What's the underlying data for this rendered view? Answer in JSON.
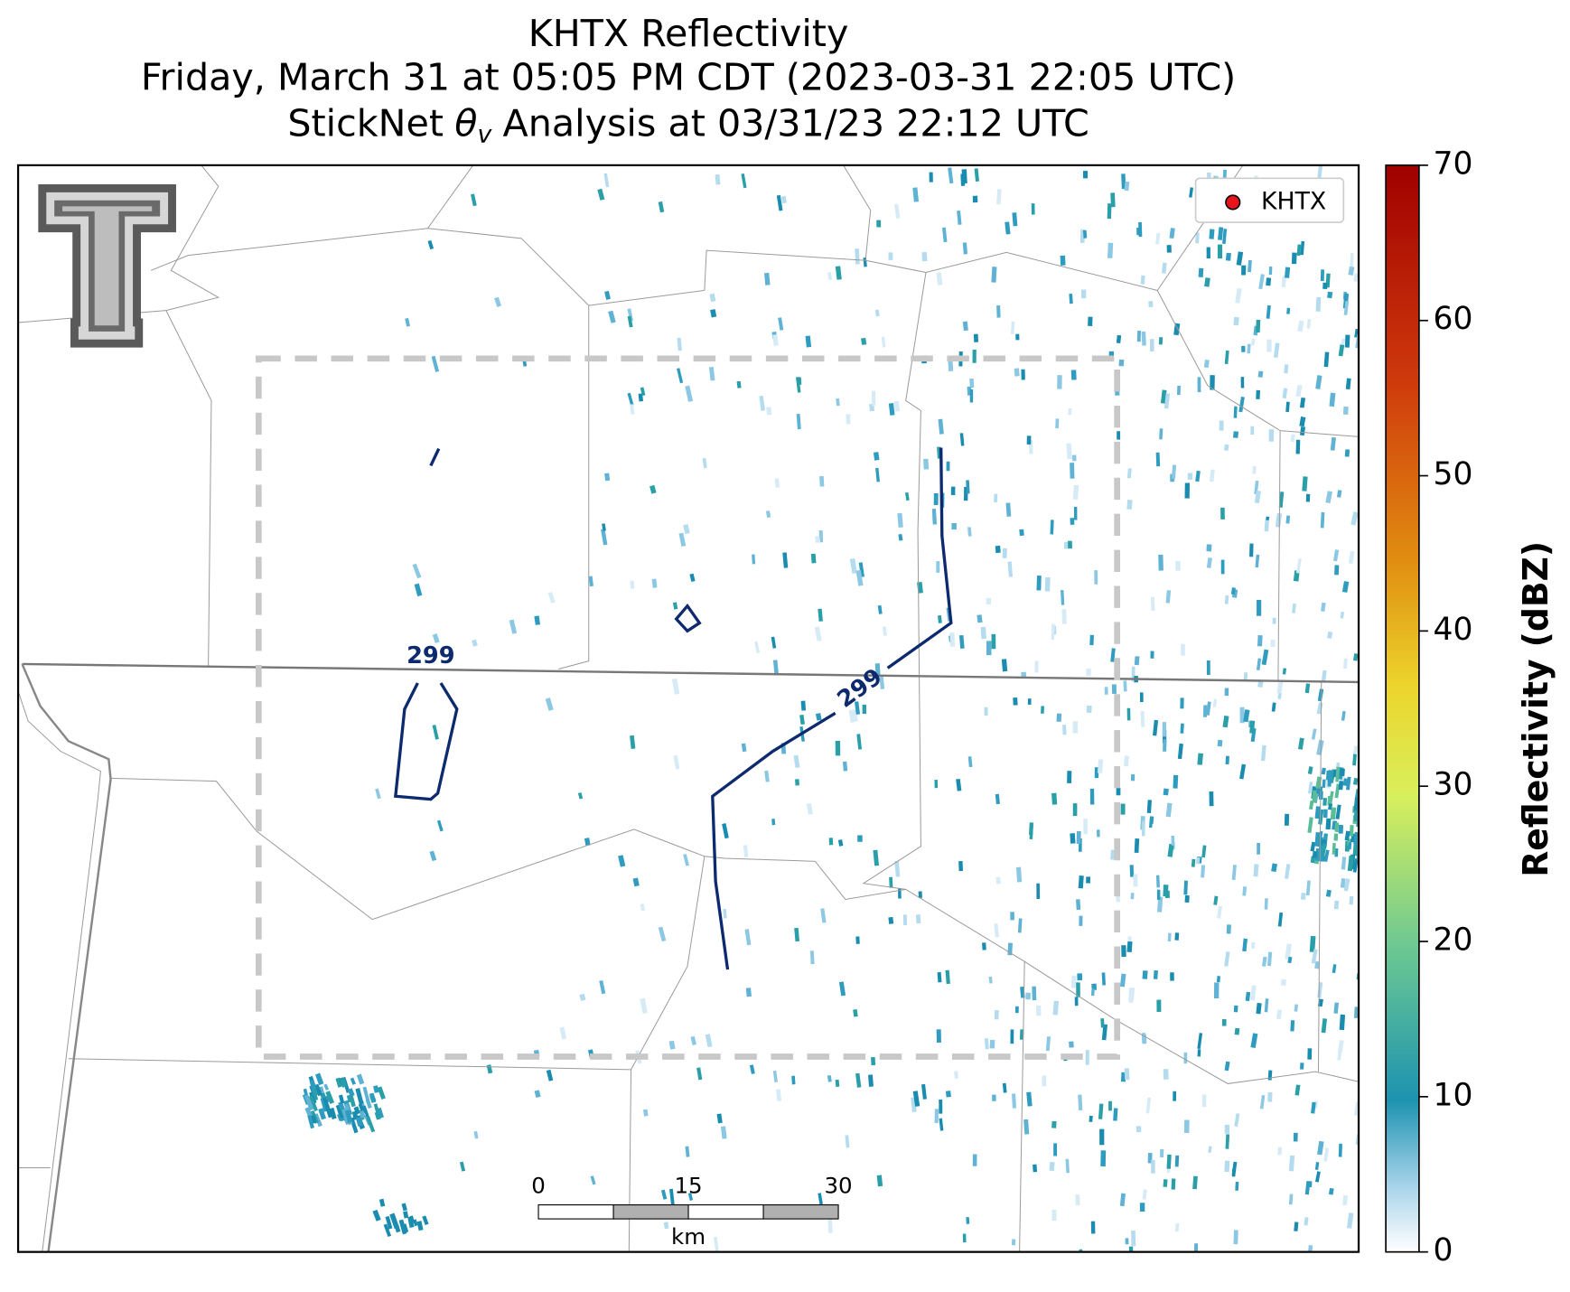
{
  "title": {
    "line1": "KHTX Reflectivity",
    "line2": "Friday, March 31 at 05:05 PM CDT (2023-03-31 22:05 UTC)",
    "line3": {
      "prefix": "StickNet",
      "symbol": "θ",
      "subscript": "v",
      "suffix": "Analysis at 03/31/23 22:12 UTC"
    }
  },
  "legend": {
    "label": "KHTX",
    "color": "#e8141c"
  },
  "contours": [
    {
      "value": 299
    },
    {
      "value": 299
    }
  ],
  "scale_bar": {
    "ticks": [
      0,
      15,
      30
    ],
    "unit": "km"
  },
  "colorbar": {
    "label": "Reflectivity (dBZ)",
    "lim": [
      0,
      70
    ],
    "ticks": [
      0,
      10,
      20,
      30,
      40,
      50,
      60,
      70
    ]
  }
}
